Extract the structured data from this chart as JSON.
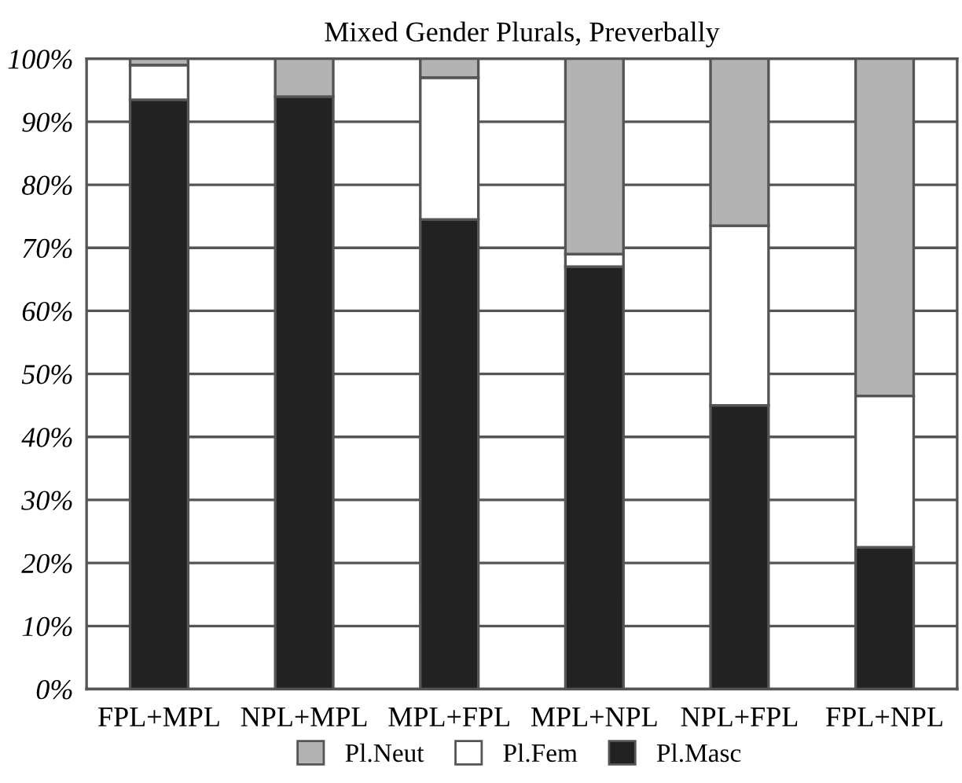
{
  "chart_data": {
    "type": "bar",
    "title": "Mixed Gender Plurals, Preverbally",
    "categories": [
      "FPL+MPL",
      "NPL+MPL",
      "MPL+FPL",
      "MPL+NPL",
      "NPL+FPL",
      "FPL+NPL"
    ],
    "stacked": true,
    "series": [
      {
        "name": "Pl.Masc",
        "color": "#222222",
        "values": [
          93.5,
          94,
          74.5,
          67,
          45,
          22.5
        ]
      },
      {
        "name": "Pl.Fem",
        "color": "#ffffff",
        "values": [
          5.5,
          null,
          22.5,
          2,
          28.5,
          24
        ]
      },
      {
        "name": "Pl.Neut",
        "color": "#b3b3b3",
        "values": [
          1,
          6,
          3,
          31,
          26.5,
          53.5
        ]
      }
    ],
    "ylim": [
      0,
      100
    ],
    "yticks": [
      {
        "value": 0,
        "label": "0%"
      },
      {
        "value": 10,
        "label": "10%"
      },
      {
        "value": 20,
        "label": "20%"
      },
      {
        "value": 30,
        "label": "30%"
      },
      {
        "value": 40,
        "label": "40%"
      },
      {
        "value": 50,
        "label": "50%"
      },
      {
        "value": 60,
        "label": "60%"
      },
      {
        "value": 70,
        "label": "70%"
      },
      {
        "value": 80,
        "label": "80%"
      },
      {
        "value": 90,
        "label": "90%"
      },
      {
        "value": 100,
        "label": "100%"
      }
    ],
    "grid": "y",
    "legend": "bottom"
  }
}
